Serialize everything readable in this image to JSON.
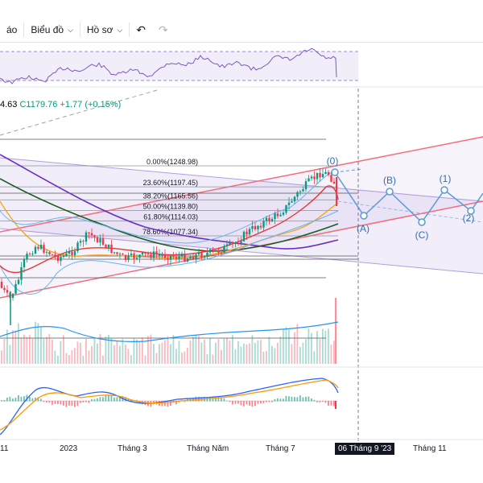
{
  "toolbar": {
    "partial_label": "áo",
    "chart_menu_label": "Biểu đồ",
    "profile_menu_label": "Hồ sơ",
    "undo_icon": "undo-icon",
    "redo_icon": "redo-icon"
  },
  "ohlc": {
    "partial_open": "4.63",
    "close_label": "C1179.76",
    "change": "+1.77 (+0.15%)"
  },
  "colors": {
    "up": "#089981",
    "down": "#f23645",
    "channel": "#f26d7d",
    "wave": "#5b9bd5",
    "rsi": "#7e57c2",
    "ma_purple": "#6a2fc4",
    "ma_green": "#1b5e20",
    "ma_orange": "#f5a623",
    "ma_red": "#e53935",
    "bb_blue": "#64b5f6",
    "macd": "#2962ff",
    "signal": "#ff9800"
  },
  "fibonacci": [
    {
      "label": "0.00%(1248.98)"
    },
    {
      "label": "23.60%(1197.45)"
    },
    {
      "label": "38.20%(1165.56)"
    },
    {
      "label": "50.00%(1139.80)"
    },
    {
      "label": "61.80%(1114.03)"
    },
    {
      "label": "78.60%(1077.34)"
    }
  ],
  "elliott_labels": [
    "(0)",
    "(A)",
    "(B)",
    "(C)",
    "(1)",
    "(2)"
  ],
  "x_axis": {
    "labels": [
      {
        "text": "11"
      },
      {
        "text": "2023"
      },
      {
        "text": "Tháng 3"
      },
      {
        "text": "Tháng Năm"
      },
      {
        "text": "Tháng 7"
      },
      {
        "text": "06 Tháng 9 '23",
        "highlight": true
      },
      {
        "text": "Tháng 11"
      }
    ]
  },
  "chart_data": {
    "type": "candlestick",
    "fib_levels": [
      1248.98,
      1197.45,
      1165.56,
      1139.8,
      1114.03,
      1077.34
    ],
    "last_close": 1179.76,
    "change": 1.77,
    "change_pct": 0.15,
    "panes": [
      "RSI",
      "price",
      "volume",
      "MACD"
    ]
  }
}
